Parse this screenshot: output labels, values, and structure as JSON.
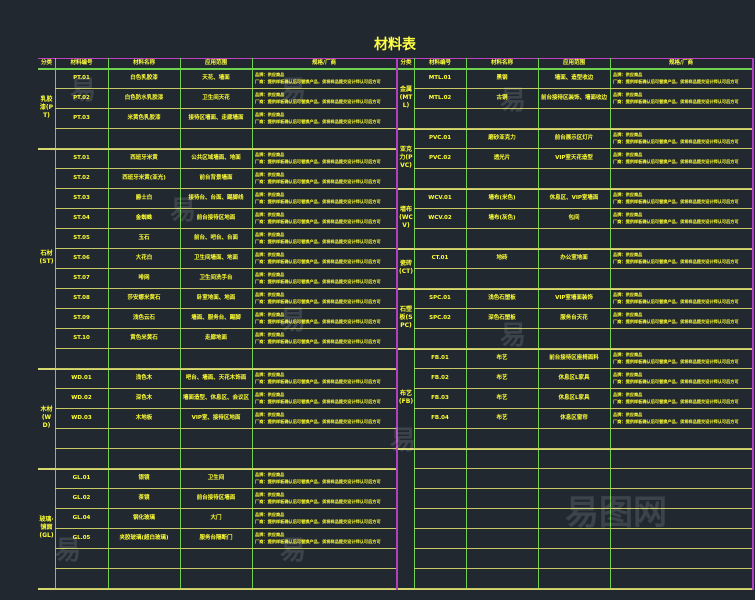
{
  "title": "材料表",
  "headers": [
    "分类",
    "材料编号",
    "材料名称",
    "应用范围",
    "规格/厂商"
  ],
  "spec_lines": [
    "品牌：供应商品",
    "厂商：提供样板确认后可替换产品，须将样品提交设计师认可后方可"
  ],
  "colors": {
    "background": "#212830",
    "text": "#ffff33",
    "grid": "#70d050",
    "row_line": "#c8c864",
    "border": "#b040c0"
  },
  "left": {
    "categories": [
      {
        "label": "乳胶漆(PT)",
        "rowspan": 4
      },
      {
        "label": "石材(ST)",
        "rowspan": 11
      },
      {
        "label": "木材(WD)",
        "rowspan": 5
      },
      {
        "label": "玻璃·镜面(GL)",
        "rowspan": 6
      }
    ],
    "rows": [
      {
        "code": "PT.01",
        "name": "白色乳胶漆",
        "area": "天花、墙面",
        "spec": true
      },
      {
        "code": "PT.02",
        "name": "白色防水乳胶漆",
        "area": "卫生间天花",
        "spec": true
      },
      {
        "code": "PT.03",
        "name": "米黄色乳胶漆",
        "area": "接待区墙面、走廊墙面",
        "spec": true
      },
      {
        "code": "",
        "name": "",
        "area": "",
        "spec": false
      },
      {
        "code": "ST.01",
        "name": "西班牙米黄",
        "area": "公共区域墙面、地面",
        "spec": true
      },
      {
        "code": "ST.02",
        "name": "西班牙米黄(亚光)",
        "area": "前台背景墙面",
        "spec": true
      },
      {
        "code": "ST.03",
        "name": "爵士白",
        "area": "接待台、台面、踢脚线",
        "spec": true
      },
      {
        "code": "ST.04",
        "name": "金蜘蛛",
        "area": "前台接待区地面",
        "spec": true
      },
      {
        "code": "ST.05",
        "name": "玉石",
        "area": "前台、吧台、台面",
        "spec": true
      },
      {
        "code": "ST.06",
        "name": "大花白",
        "area": "卫生间墙面、地面",
        "spec": true
      },
      {
        "code": "ST.07",
        "name": "啡网",
        "area": "卫生间洗手台",
        "spec": true
      },
      {
        "code": "ST.08",
        "name": "莎安娜米黄石",
        "area": "卧室地面、地面",
        "spec": true
      },
      {
        "code": "ST.09",
        "name": "浅色云石",
        "area": "墙面、服务台、踢脚",
        "spec": true
      },
      {
        "code": "ST.10",
        "name": "黄色米黄石",
        "area": "走廊地面",
        "spec": true
      },
      {
        "code": "",
        "name": "",
        "area": "",
        "spec": false
      },
      {
        "code": "WD.01",
        "name": "浅色木",
        "area": "吧台、墙面、天花木饰面",
        "spec": true
      },
      {
        "code": "WD.02",
        "name": "深色木",
        "area": "墙面造型、休息区、会议区",
        "spec": true
      },
      {
        "code": "WD.03",
        "name": "木地板",
        "area": "VIP室、接待区地面",
        "spec": true
      },
      {
        "code": "",
        "name": "",
        "area": "",
        "spec": false
      },
      {
        "code": "",
        "name": "",
        "area": "",
        "spec": false
      },
      {
        "code": "GL.01",
        "name": "银镜",
        "area": "卫生间",
        "spec": true
      },
      {
        "code": "GL.02",
        "name": "茶镜",
        "area": "前台接待区墙面",
        "spec": true
      },
      {
        "code": "GL.04",
        "name": "钢化玻璃",
        "area": "大门",
        "spec": true
      },
      {
        "code": "GL.05",
        "name": "夹胶玻璃(超白玻璃)",
        "area": "服务台隔断门",
        "spec": true
      },
      {
        "code": "",
        "name": "",
        "area": "",
        "spec": false
      },
      {
        "code": "",
        "name": "",
        "area": "",
        "spec": false
      }
    ]
  },
  "right": {
    "categories": [
      {
        "label": "金属(MTL)",
        "rowspan": 3
      },
      {
        "label": "亚克力(PVC)",
        "rowspan": 3
      },
      {
        "label": "墙布(WCV)",
        "rowspan": 3
      },
      {
        "label": "瓷砖(CT)",
        "rowspan": 2
      },
      {
        "label": "石塑板(SPC)",
        "rowspan": 3
      },
      {
        "label": "布艺(FB)",
        "rowspan": 5
      },
      {
        "label": "",
        "rowspan": 7
      }
    ],
    "rows": [
      {
        "code": "MTL.01",
        "name": "黑钢",
        "area": "墙面、造型收边",
        "spec": true
      },
      {
        "code": "MTL.02",
        "name": "古铜",
        "area": "前台接待区装饰、墙面收边",
        "spec": true
      },
      {
        "code": "",
        "name": "",
        "area": "",
        "spec": false
      },
      {
        "code": "PVC.01",
        "name": "磨砂亚克力",
        "area": "前台展示区灯片",
        "spec": true
      },
      {
        "code": "PVC.02",
        "name": "透光片",
        "area": "VIP室天花造型",
        "spec": true
      },
      {
        "code": "",
        "name": "",
        "area": "",
        "spec": false
      },
      {
        "code": "WCV.01",
        "name": "墙布(米色)",
        "area": "休息区、VIP室墙面",
        "spec": true
      },
      {
        "code": "WCV.02",
        "name": "墙布(灰色)",
        "area": "包间",
        "spec": true
      },
      {
        "code": "",
        "name": "",
        "area": "",
        "spec": false
      },
      {
        "code": "CT.01",
        "name": "地砖",
        "area": "办公室地面",
        "spec": true
      },
      {
        "code": "",
        "name": "",
        "area": "",
        "spec": false
      },
      {
        "code": "SPC.01",
        "name": "浅色石塑板",
        "area": "VIP室墙面装饰",
        "spec": true
      },
      {
        "code": "SPC.02",
        "name": "深色石塑板",
        "area": "服务台天花",
        "spec": true
      },
      {
        "code": "",
        "name": "",
        "area": "",
        "spec": false
      },
      {
        "code": "FB.01",
        "name": "布艺",
        "area": "前台接待区座椅面料",
        "spec": true
      },
      {
        "code": "FB.02",
        "name": "布艺",
        "area": "休息区L家具",
        "spec": true
      },
      {
        "code": "FB.03",
        "name": "布艺",
        "area": "休息区L家具",
        "spec": true
      },
      {
        "code": "FB.04",
        "name": "布艺",
        "area": "休息区窗帘",
        "spec": true
      },
      {
        "code": "",
        "name": "",
        "area": "",
        "spec": false
      },
      {
        "code": "",
        "name": "",
        "area": "",
        "spec": false
      },
      {
        "code": "",
        "name": "",
        "area": "",
        "spec": false
      },
      {
        "code": "",
        "name": "",
        "area": "",
        "spec": false
      },
      {
        "code": "",
        "name": "",
        "area": "",
        "spec": false
      },
      {
        "code": "",
        "name": "",
        "area": "",
        "spec": false
      },
      {
        "code": "",
        "name": "",
        "area": "",
        "spec": false
      },
      {
        "code": "",
        "name": "",
        "area": "",
        "spec": false
      }
    ]
  }
}
